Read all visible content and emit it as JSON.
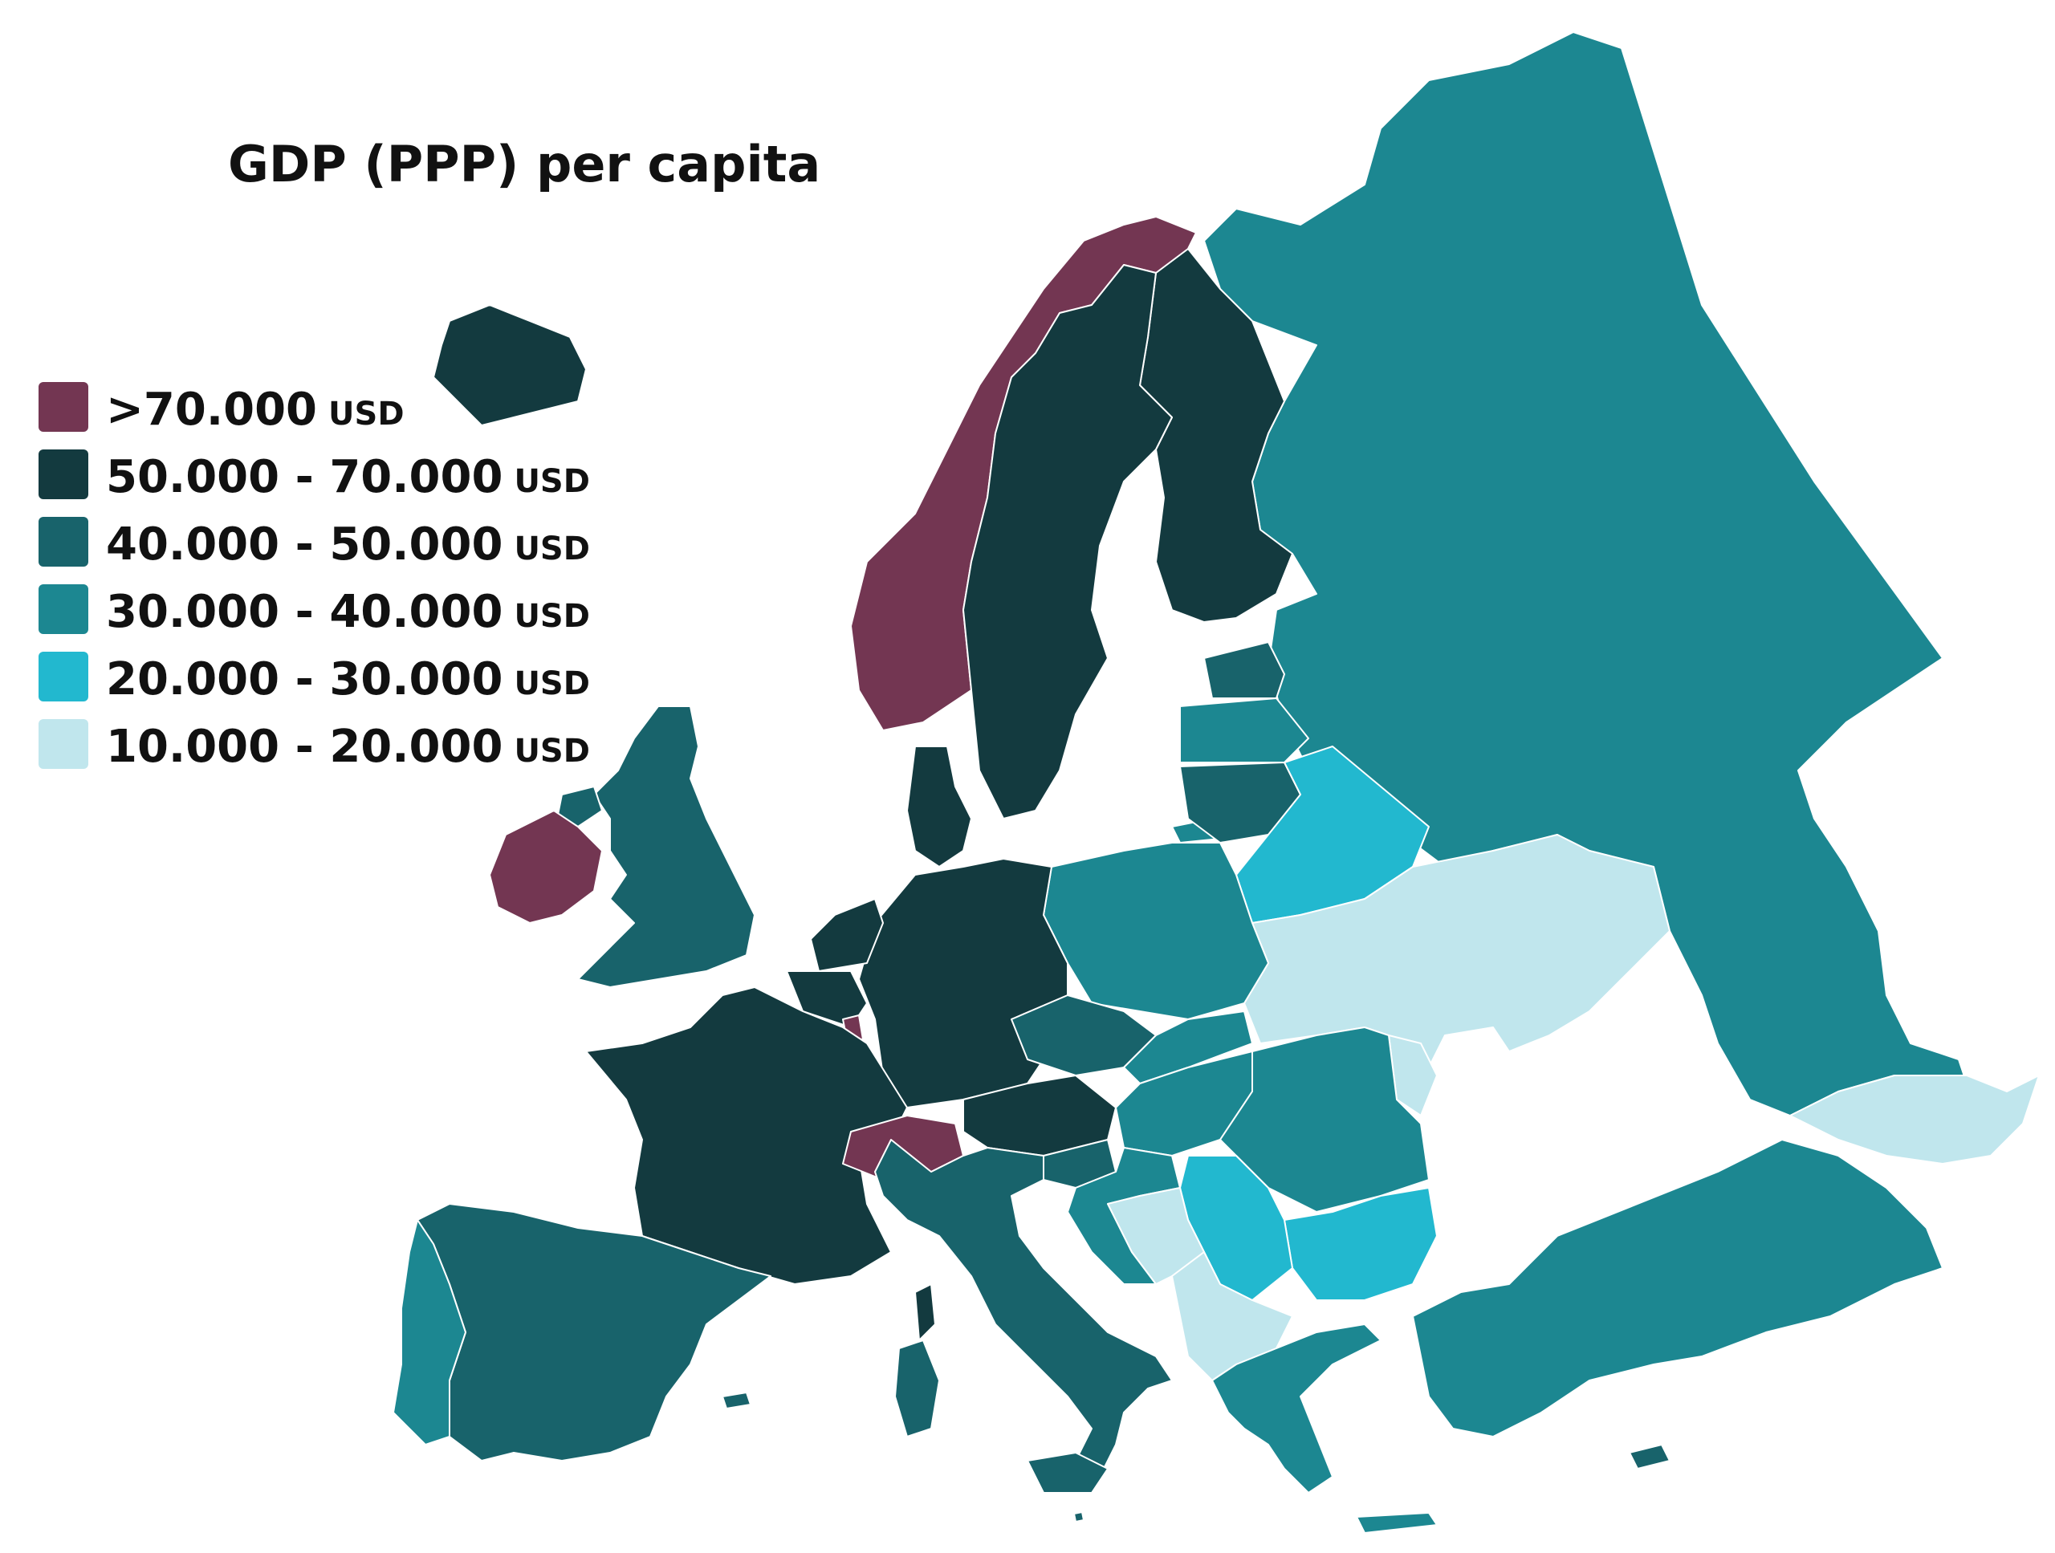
{
  "title": "GDP (PPP) per capita",
  "legend": [
    {
      "range": ">70.000",
      "unit": "USD",
      "color": "#733652"
    },
    {
      "range": "50.000 - 70.000",
      "unit": "USD",
      "color": "#133a3f"
    },
    {
      "range": "40.000 - 50.000",
      "unit": "USD",
      "color": "#18636b"
    },
    {
      "range": "30.000 - 40.000",
      "unit": "USD",
      "color": "#1c8791"
    },
    {
      "range": "20.000 - 30.000",
      "unit": "USD",
      "color": "#22b8cf"
    },
    {
      "range": "10.000 - 20.000",
      "unit": "USD",
      "color": "#c0e6ed"
    }
  ],
  "regions": {
    "ireland": "#733652",
    "norway": "#733652",
    "switzerland": "#733652",
    "luxembourg": "#733652",
    "iceland": "#133a3f",
    "sweden": "#133a3f",
    "finland": "#133a3f",
    "denmark": "#133a3f",
    "netherlands": "#133a3f",
    "belgium": "#133a3f",
    "germany": "#133a3f",
    "austria": "#133a3f",
    "france": "#133a3f",
    "uk": "#18636b",
    "spain": "#18636b",
    "italy": "#18636b",
    "czechia": "#18636b",
    "slovenia": "#18636b",
    "estonia": "#18636b",
    "lithuania": "#18636b",
    "malta": "#18636b",
    "cyprus": "#18636b",
    "portugal": "#1c8791",
    "poland": "#1c8791",
    "slovakia": "#1c8791",
    "hungary": "#1c8791",
    "croatia": "#1c8791",
    "romania": "#1c8791",
    "greece": "#1c8791",
    "latvia": "#1c8791",
    "russia": "#1c8791",
    "turkey": "#1c8791",
    "bulgaria": "#22b8cf",
    "serbia": "#22b8cf",
    "belarus": "#22b8cf",
    "ukraine": "#c0e6ed",
    "bosnia": "#c0e6ed",
    "albania": "#c0e6ed",
    "macedonia": "#c0e6ed",
    "moldova": "#c0e6ed",
    "caucasus": "#c0e6ed"
  }
}
